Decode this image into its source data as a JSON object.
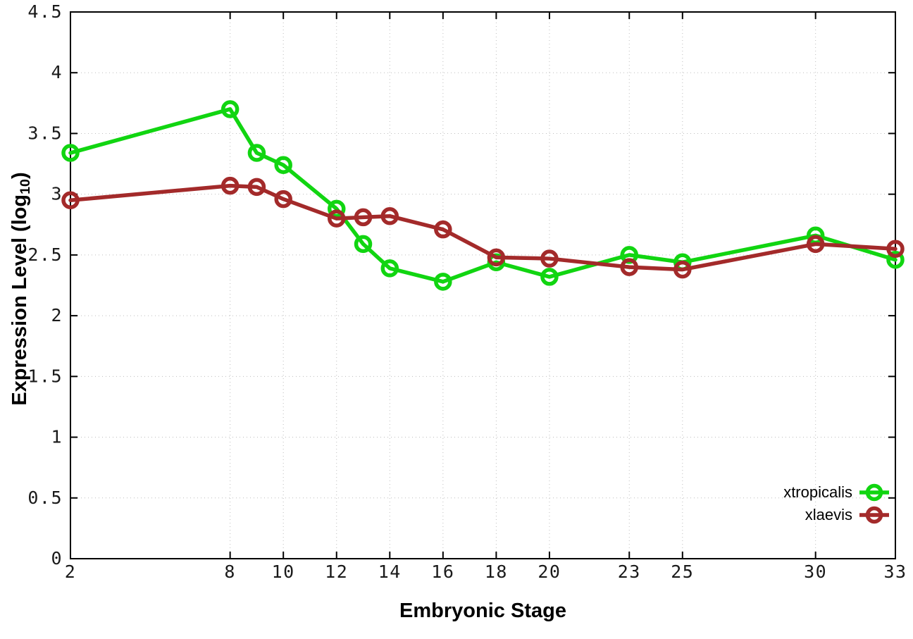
{
  "chart_data": {
    "type": "line",
    "title": "",
    "xlabel": "Embryonic Stage",
    "ylabel": "Expression Level (log10)",
    "ylabel_parts": {
      "main": "Expression Level (log",
      "sub": "10",
      "suffix": ")"
    },
    "xlim": [
      2,
      33
    ],
    "ylim": [
      0,
      4.5
    ],
    "x_ticks": [
      2,
      8,
      10,
      12,
      14,
      16,
      18,
      20,
      23,
      25,
      30,
      33
    ],
    "y_ticks": [
      0,
      0.5,
      1,
      1.5,
      2,
      2.5,
      3,
      3.5,
      4,
      4.5
    ],
    "grid": true,
    "legend_position": "bottom-right",
    "marker": "open-circle",
    "x": [
      2,
      8,
      9,
      10,
      12,
      13,
      14,
      16,
      18,
      20,
      23,
      25,
      30,
      33
    ],
    "series": [
      {
        "name": "xtropicalis",
        "color": "#11d511",
        "values": [
          3.34,
          3.7,
          3.34,
          3.24,
          2.88,
          2.59,
          2.39,
          2.28,
          2.44,
          2.32,
          2.5,
          2.44,
          2.66,
          2.46
        ]
      },
      {
        "name": "xlaevis",
        "color": "#a32a2a",
        "values": [
          2.95,
          3.07,
          3.06,
          2.96,
          2.8,
          2.81,
          2.82,
          2.71,
          2.48,
          2.47,
          2.4,
          2.38,
          2.59,
          2.55
        ]
      }
    ]
  },
  "colors": {
    "grid": "#bdbdbd",
    "border": "#000000",
    "tick_text": "#1a1a1a",
    "background": "#ffffff"
  }
}
